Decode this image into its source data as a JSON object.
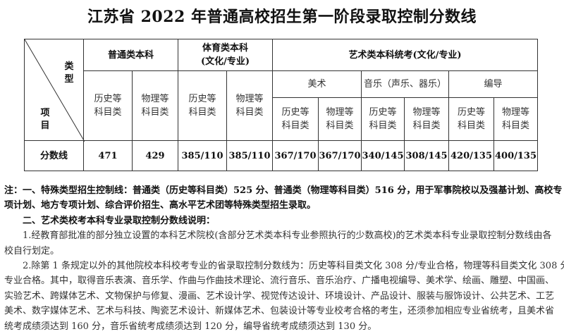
{
  "title": "江苏省 2022 年普通高校招生第一阶段录取控制分数线",
  "table": {
    "corner_top": "类型",
    "corner_bottom": "项目",
    "groups": [
      {
        "label": "普通类本科"
      },
      {
        "label": "体育类本科\n(文化/专业)"
      },
      {
        "label": "艺术类本科统考(文化/专业)"
      }
    ],
    "art_subgroups": [
      "美术",
      "音乐（声乐、器乐）",
      "编导"
    ],
    "sub_history": "历史等\n科目类",
    "sub_physics": "物理等\n科目类",
    "row_label": "分数线",
    "values": [
      "471",
      "429",
      "385/110",
      "385/110",
      "367/170",
      "367/170",
      "340/145",
      "308/145",
      "420/135",
      "400/135"
    ]
  },
  "notes": {
    "lines": [
      {
        "text": "注：一、特殊类型招生控制线：普通类（历史等科目类）525 分、普通类（物理等科目类）516 分，用于军事院校以及强基计划、高校专",
        "style": "bold",
        "indent": 0
      },
      {
        "text": "项计划、地方专项计划、综合评价招生、高水平艺术团等特殊类型招生录取。",
        "style": "bold",
        "indent": 0
      },
      {
        "text": "二、艺术类校考本科专业录取控制分数线说明：",
        "style": "bold",
        "indent": 1
      },
      {
        "text": "1.经教育部批准的部分独立设置的本科艺术院校(含部分艺术类本科专业参照执行的少数高校)的艺术类本科专业录取控制分数线由各",
        "style": "normal",
        "indent": 1
      },
      {
        "text": "校自行划定。",
        "style": "normal",
        "indent": 0
      },
      {
        "text": "2.除第 1 条规定以外的其他院校本科校考专业的省录取控制分数线为：历史等科目类文化 308 分/专业合格，物理等科目类文化 308 分/",
        "style": "normal",
        "indent": 1
      },
      {
        "text": "专业合格。其中，取得音乐表演、音乐学、作曲与作曲技术理论、流行音乐、音乐治疗、广播电视编导、美术学、绘画、雕塑、中国画、",
        "style": "normal",
        "indent": 0
      },
      {
        "text": "实验艺术、跨媒体艺术、文物保护与修复、漫画、艺术设计学、视觉传达设计、环境设计、产品设计、服装与服饰设计、公共艺术、工艺",
        "style": "normal",
        "indent": 0
      },
      {
        "text": "美术、数字媒体艺术、艺术与科技、陶瓷艺术设计、新媒体艺术、包装设计等专业校考合格的考生，还须参加相应专业省统考，且美术省",
        "style": "normal",
        "indent": 0
      },
      {
        "text": "统考成绩须达到 160 分，音乐省统考成绩须达到 120 分，编导省统考成绩须达到 130 分。",
        "style": "normal",
        "indent": 0
      }
    ]
  }
}
